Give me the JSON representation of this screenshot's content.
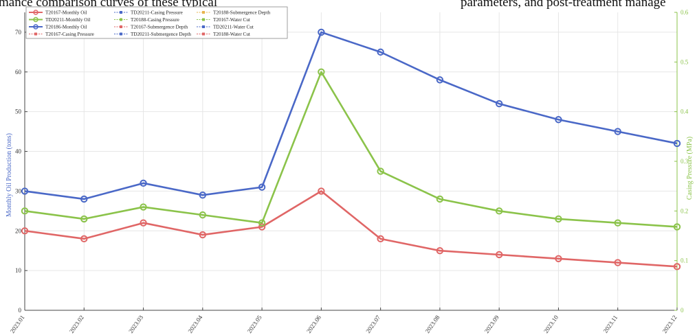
{
  "header_fragment": {
    "left": "mance comparison curves of these typical",
    "right": "parameters, and post-treatment manage"
  },
  "colors": {
    "red": "#e06666",
    "green": "#8bc34a",
    "blue": "#4a68c7"
  },
  "chart_data": {
    "type": "line",
    "x": [
      "2023.01",
      "2023.02",
      "2023.03",
      "2023.04",
      "2023.05",
      "2023.06",
      "2023.07",
      "2023.08",
      "2023.09",
      "2023.10",
      "2023.11",
      "2023.12"
    ],
    "ylabel_left": "Monthly Oil Production (tons)",
    "ylabel_right": "Casing Pressure (MPa)",
    "ylim_left": [
      0,
      75
    ],
    "ylim_right": [
      0,
      0.6
    ],
    "yticks_left": [
      "0",
      "10",
      "20",
      "30",
      "40",
      "50",
      "60",
      "70"
    ],
    "yticks_right": [
      "0",
      "0.1",
      "0.2",
      "0.3",
      "0.4",
      "0.5",
      "0.6"
    ],
    "grid": true,
    "legend_position": "top-left",
    "series": [
      {
        "name": "T20167-Monthly Oil",
        "color": "#e06666",
        "values": [
          20,
          18,
          22,
          19,
          21,
          30,
          18,
          15,
          14,
          13,
          12,
          11
        ]
      },
      {
        "name": "TD20211-Monthly Oil",
        "color": "#8bc34a",
        "values": [
          25,
          23,
          26,
          24,
          22,
          60,
          35,
          28,
          25,
          23,
          22,
          21
        ]
      },
      {
        "name": "T20186-Monthly Oil",
        "color": "#4a68c7",
        "values": [
          30,
          28,
          32,
          29,
          31,
          70,
          65,
          58,
          52,
          48,
          45,
          42
        ]
      }
    ],
    "legend": [
      [
        "T20167-Monthly Oil",
        "TD20211-Casing Pressure",
        "T20188-Submergence Depth"
      ],
      [
        "TD20211-Monthly Oil",
        "T20188-Casing Pressure",
        "T20167-Water Cut"
      ],
      [
        "T20186-Monthly Oil",
        "T20167-Submergence Depth",
        "TD20211-Water Cut"
      ],
      [
        "T20167-Casing Pressure",
        "TD20211-Submergence Depth",
        "T20188-Water Cut"
      ]
    ]
  }
}
